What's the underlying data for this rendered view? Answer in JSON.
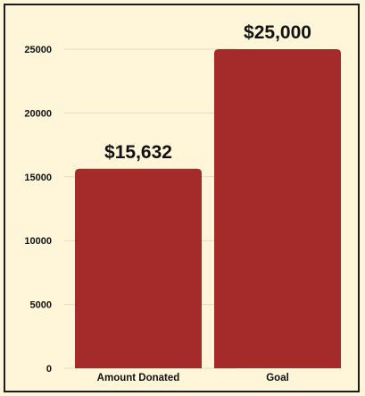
{
  "chart_data": {
    "type": "bar",
    "categories": [
      "Amount Donated",
      "Goal"
    ],
    "values": [
      15632,
      25000
    ],
    "data_labels": [
      "$15,632",
      "$25,000"
    ],
    "y_ticks": [
      "0",
      "5000",
      "10000",
      "15000",
      "20000",
      "25000"
    ],
    "ylim": [
      0,
      25000
    ],
    "grid": true,
    "bar_color": "#a52a2a",
    "title": "",
    "xlabel": "",
    "ylabel": ""
  },
  "colors": {
    "background": "#fff6d9",
    "border": "#1c1c1c",
    "bar": "#a52a2a"
  }
}
